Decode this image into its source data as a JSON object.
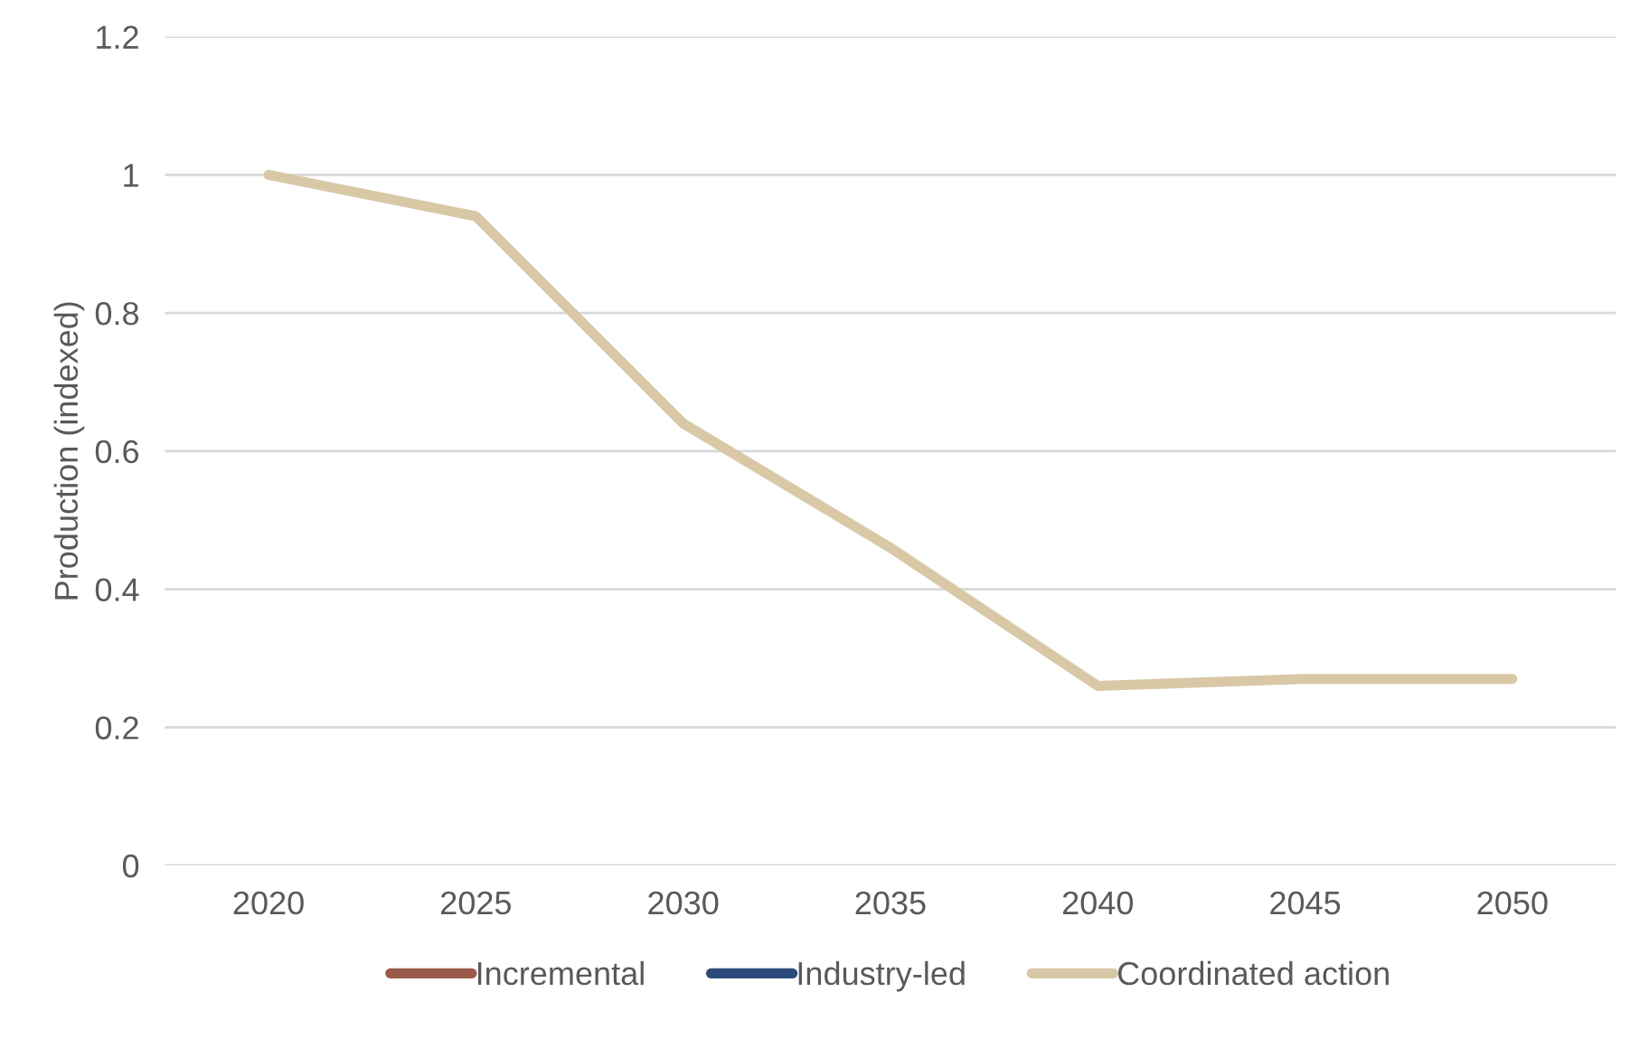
{
  "chart_data": {
    "type": "line",
    "ylabel": "Production (indexed)",
    "categories": [
      "2020",
      "2025",
      "2030",
      "2035",
      "2040",
      "2045",
      "2050"
    ],
    "series": [
      {
        "name": "Incremental",
        "color": "#9c5a4c",
        "values": [
          null,
          null,
          null,
          null,
          null,
          null,
          null
        ]
      },
      {
        "name": "Industry-led",
        "color": "#2d4a7a",
        "values": [
          null,
          null,
          null,
          null,
          null,
          null,
          null
        ]
      },
      {
        "name": "Coordinated action",
        "color": "#d8c8a6",
        "values": [
          1.0,
          0.94,
          0.64,
          0.46,
          0.26,
          0.27,
          0.27
        ]
      }
    ],
    "ylim": [
      0,
      1.2
    ],
    "yticks": [
      0,
      0.2,
      0.4,
      0.6,
      0.8,
      1,
      1.2
    ],
    "grid": "y",
    "legend": "bottom",
    "marker": "none",
    "line_style": "solid"
  }
}
